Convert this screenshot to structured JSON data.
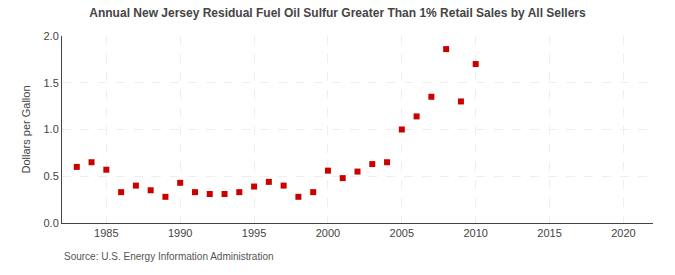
{
  "chart_data": {
    "type": "scatter",
    "title": "Annual New Jersey Residual Fuel Oil Sulfur Greater Than 1% Retail Sales by All Sellers",
    "ylabel": "Dollars per Gallon",
    "annotations": [
      "Source: U.S. Energy Information Administration"
    ],
    "x": [
      1983,
      1984,
      1985,
      1986,
      1987,
      1988,
      1989,
      1990,
      1991,
      1992,
      1993,
      1994,
      1995,
      1996,
      1997,
      1998,
      1999,
      2000,
      2001,
      2002,
      2003,
      2004,
      2005,
      2006,
      2007,
      2008,
      2009,
      2010
    ],
    "values": [
      0.6,
      0.65,
      0.57,
      0.33,
      0.4,
      0.35,
      0.28,
      0.43,
      0.33,
      0.31,
      0.31,
      0.33,
      0.39,
      0.44,
      0.4,
      0.28,
      0.33,
      0.56,
      0.48,
      0.55,
      0.63,
      0.65,
      1.0,
      1.14,
      1.35,
      1.86,
      1.3,
      1.7
    ],
    "color": "#cc0000",
    "marker": "square",
    "xlim": [
      1982,
      2022
    ],
    "ylim": [
      0.0,
      2.0
    ],
    "xticks": [
      1985,
      1990,
      1995,
      2000,
      2005,
      2010,
      2015,
      2020
    ],
    "yticks": [
      {
        "value": 0.0,
        "label": "0.0"
      },
      0.5,
      {
        "value": 1.0,
        "label": "1.0"
      },
      1.5,
      {
        "value": 2.0,
        "label": "2.0"
      }
    ],
    "grid": true
  }
}
